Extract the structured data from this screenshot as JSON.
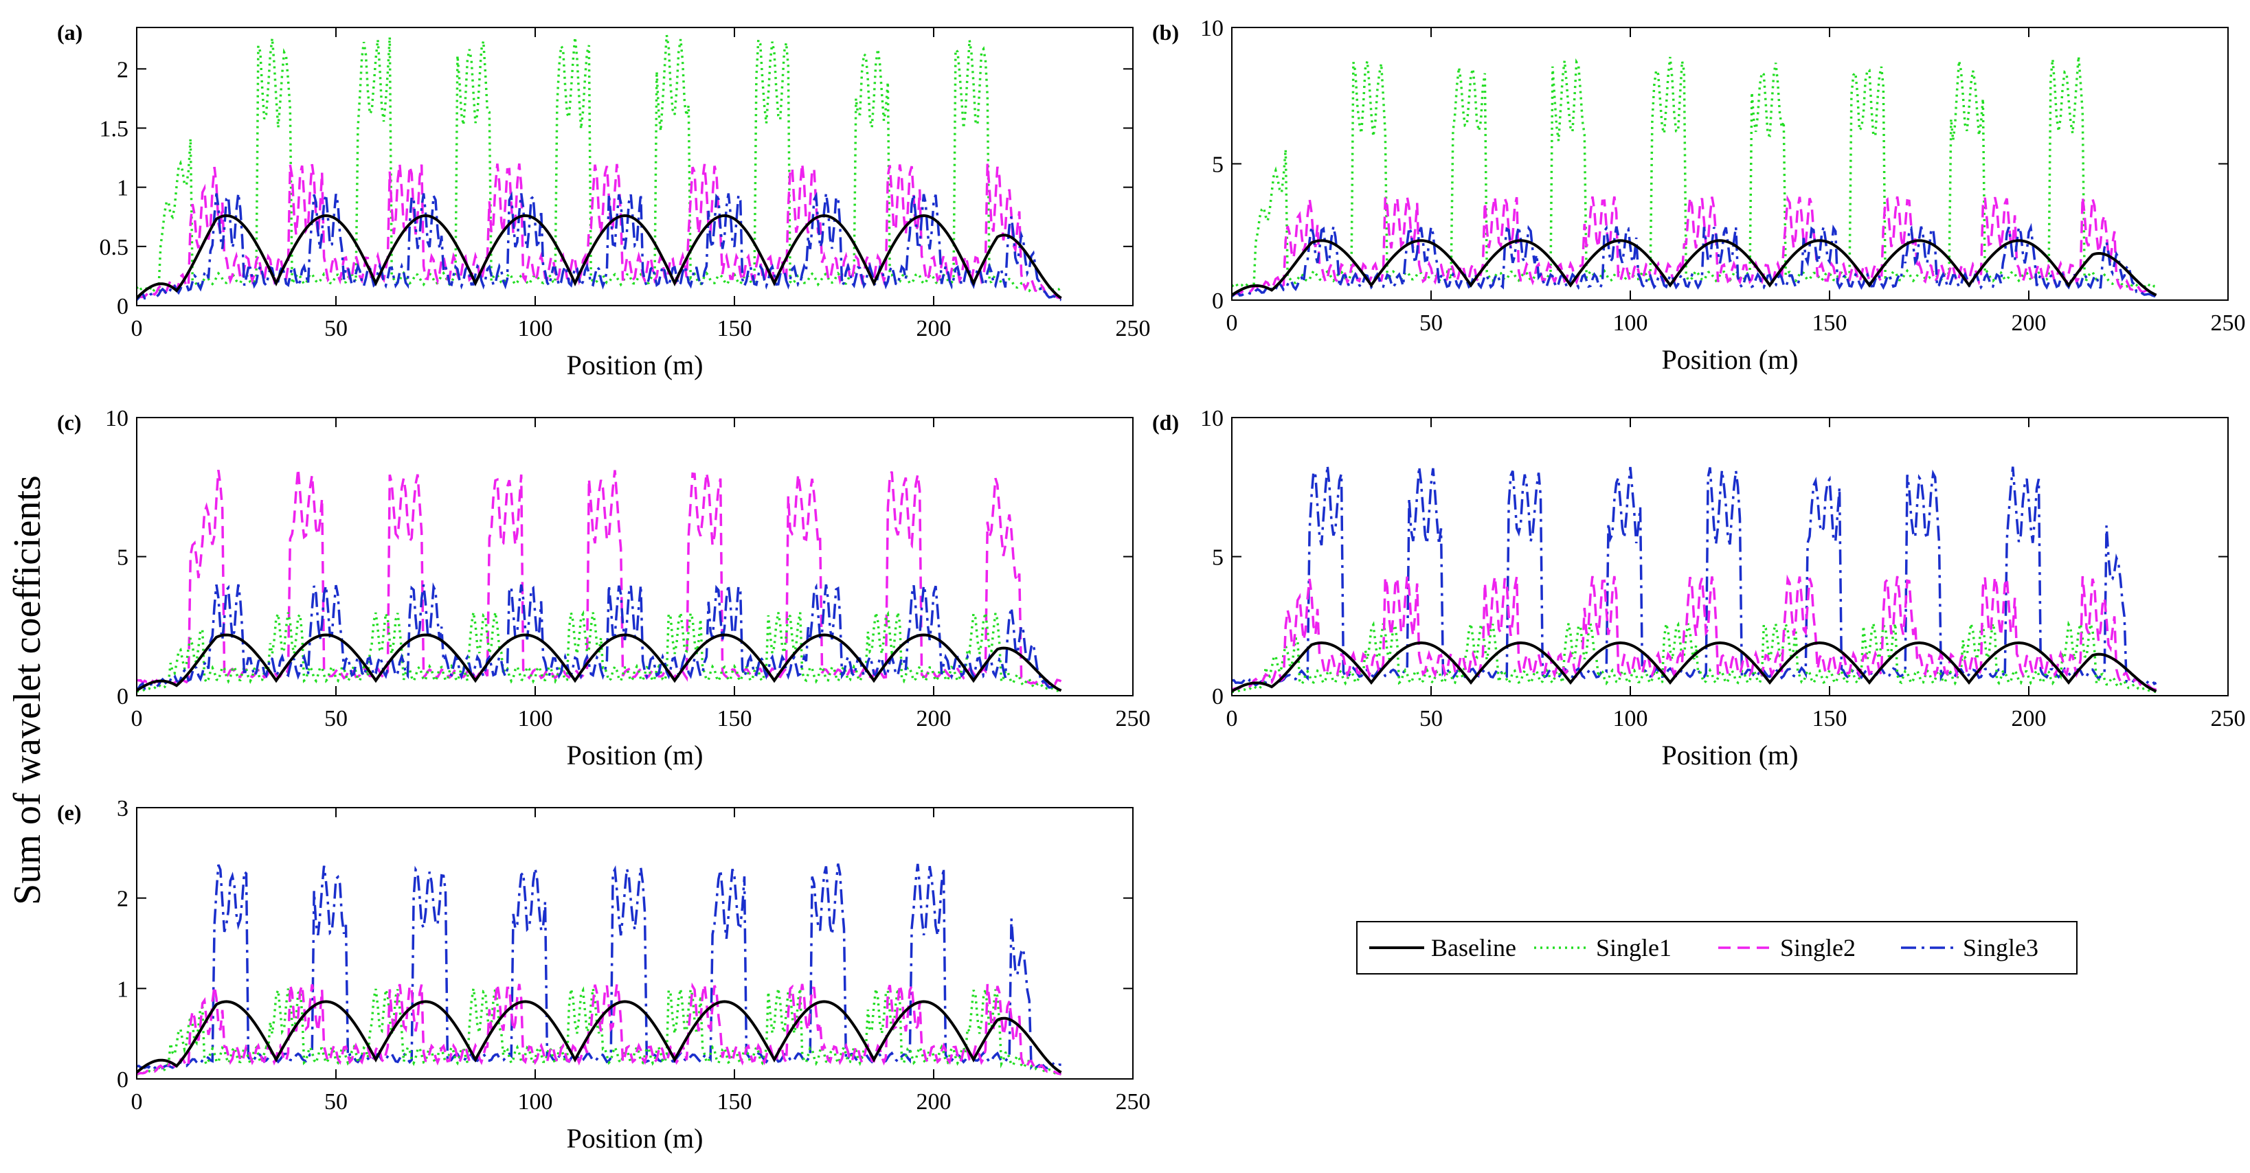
{
  "figure": {
    "ylabel": "Sum of wavelet coefficients",
    "legend": {
      "placement": "lower-right empty cell",
      "entries": [
        {
          "name": "Baseline",
          "color": "#000000",
          "dash": "solid"
        },
        {
          "name": "Single1",
          "color": "#22dd22",
          "dash": "dotted"
        },
        {
          "name": "Single2",
          "color": "#ee22ee",
          "dash": "dashed"
        },
        {
          "name": "Single3",
          "color": "#1a2fcc",
          "dash": "dashdot"
        }
      ]
    }
  },
  "chart_data": [
    {
      "type": "line",
      "panel": "(a)",
      "xlabel": "Position (m)",
      "xlim": [
        0,
        250
      ],
      "ylim": [
        0,
        2.35
      ],
      "xticks": [
        0,
        50,
        100,
        150,
        200,
        250
      ],
      "yticks": [
        0,
        0.5,
        1,
        1.5,
        2
      ],
      "ytick_labels": [
        "0",
        "0.5",
        "1",
        "1.5",
        "2"
      ],
      "peaks": {
        "Single1": 2.3,
        "Single2": 1.2,
        "Single3": 0.95,
        "Baseline": 0.8
      }
    },
    {
      "type": "line",
      "panel": "(b)",
      "xlabel": "Position (m)",
      "xlim": [
        0,
        250
      ],
      "ylim": [
        0,
        10
      ],
      "xticks": [
        0,
        50,
        100,
        150,
        200,
        250
      ],
      "yticks": [
        0,
        5,
        10
      ],
      "ytick_labels": [
        "0",
        "5",
        "10"
      ],
      "peaks": {
        "Single1": 9.0,
        "Single2": 3.8,
        "Single3": 2.7,
        "Baseline": 2.3
      }
    },
    {
      "type": "line",
      "panel": "(c)",
      "xlabel": "Position (m)",
      "xlim": [
        0,
        250
      ],
      "ylim": [
        0,
        10
      ],
      "xticks": [
        0,
        50,
        100,
        150,
        200,
        250
      ],
      "yticks": [
        0,
        5,
        10
      ],
      "ytick_labels": [
        "0",
        "5",
        "10"
      ],
      "peaks": {
        "Single1": 3.0,
        "Single2": 8.2,
        "Single3": 4.0,
        "Baseline": 2.3
      }
    },
    {
      "type": "line",
      "panel": "(d)",
      "xlabel": "Position (m)",
      "xlim": [
        0,
        250
      ],
      "ylim": [
        0,
        10
      ],
      "xticks": [
        0,
        50,
        100,
        150,
        200,
        250
      ],
      "yticks": [
        0,
        5,
        10
      ],
      "ytick_labels": [
        "0",
        "5",
        "10"
      ],
      "peaks": {
        "Single1": 2.6,
        "Single2": 4.3,
        "Single3": 8.3,
        "Baseline": 2.0
      }
    },
    {
      "type": "line",
      "panel": "(e)",
      "xlabel": "Position (m)",
      "xlim": [
        0,
        250
      ],
      "ylim": [
        0,
        3
      ],
      "xticks": [
        0,
        50,
        100,
        150,
        200,
        250
      ],
      "yticks": [
        0,
        1,
        2,
        3
      ],
      "ytick_labels": [
        "0",
        "1",
        "2",
        "3"
      ],
      "peaks": {
        "Single1": 1.0,
        "Single2": 1.05,
        "Single3": 2.4,
        "Baseline": 0.9
      }
    }
  ]
}
